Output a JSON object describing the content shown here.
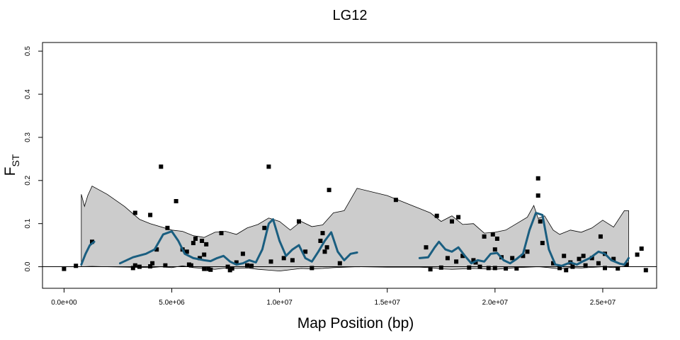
{
  "chart_data": {
    "type": "scatter",
    "title": "LG12",
    "xlabel": "Map Position (bp)",
    "ylabel_main": "F",
    "ylabel_sub": "ST",
    "xlim": [
      -1000000,
      27500000
    ],
    "ylim": [
      -0.05,
      0.52
    ],
    "x_ticks": [
      {
        "value": 0,
        "label": "0.0e+00"
      },
      {
        "value": 5000000,
        "label": "5.0e+06"
      },
      {
        "value": 10000000,
        "label": "1.0e+07"
      },
      {
        "value": 15000000,
        "label": "1.5e+07"
      },
      {
        "value": 20000000,
        "label": "2.0e+07"
      },
      {
        "value": 25000000,
        "label": "2.5e+07"
      }
    ],
    "y_ticks": [
      {
        "value": 0.0,
        "label": "0.0"
      },
      {
        "value": 0.1,
        "label": "0.1"
      },
      {
        "value": 0.2,
        "label": "0.2"
      },
      {
        "value": 0.3,
        "label": "0.3"
      },
      {
        "value": 0.4,
        "label": "0.4"
      },
      {
        "value": 0.5,
        "label": "0.5"
      }
    ],
    "reference_line_y": 0,
    "colors": {
      "points": "#000000",
      "smooth": "#1a5e80",
      "band_fill": "#cccccc",
      "band_edge": "#000000"
    },
    "envelope_upper": [
      [
        800000,
        0.168
      ],
      [
        950000,
        0.14
      ],
      [
        1100000,
        0.165
      ],
      [
        1300000,
        0.187
      ],
      [
        2000000,
        0.168
      ],
      [
        2800000,
        0.14
      ],
      [
        3500000,
        0.11
      ],
      [
        4000000,
        0.1
      ],
      [
        5000000,
        0.085
      ],
      [
        5500000,
        0.082
      ],
      [
        6000000,
        0.072
      ],
      [
        6500000,
        0.068
      ],
      [
        7000000,
        0.08
      ],
      [
        7500000,
        0.082
      ],
      [
        8000000,
        0.075
      ],
      [
        8500000,
        0.09
      ],
      [
        9000000,
        0.098
      ],
      [
        9500000,
        0.113
      ],
      [
        10000000,
        0.105
      ],
      [
        10500000,
        0.085
      ],
      [
        11000000,
        0.105
      ],
      [
        11500000,
        0.093
      ],
      [
        12000000,
        0.097
      ],
      [
        12500000,
        0.125
      ],
      [
        13000000,
        0.13
      ],
      [
        13600000,
        0.182
      ],
      [
        15000000,
        0.165
      ],
      [
        17000000,
        0.125
      ],
      [
        17500000,
        0.105
      ],
      [
        18000000,
        0.118
      ],
      [
        18500000,
        0.098
      ],
      [
        19000000,
        0.1
      ],
      [
        19500000,
        0.078
      ],
      [
        20000000,
        0.08
      ],
      [
        20500000,
        0.085
      ],
      [
        21000000,
        0.1
      ],
      [
        21500000,
        0.115
      ],
      [
        21800000,
        0.142
      ],
      [
        22000000,
        0.112
      ],
      [
        22300000,
        0.118
      ],
      [
        22700000,
        0.085
      ],
      [
        23000000,
        0.075
      ],
      [
        23500000,
        0.085
      ],
      [
        24000000,
        0.08
      ],
      [
        24500000,
        0.09
      ],
      [
        25000000,
        0.108
      ],
      [
        25500000,
        0.092
      ],
      [
        26000000,
        0.13
      ],
      [
        26200000,
        0.13
      ]
    ],
    "envelope_lower": [
      [
        26200000,
        0.002
      ],
      [
        25500000,
        -0.002
      ],
      [
        25000000,
        0.0
      ],
      [
        24000000,
        -0.003
      ],
      [
        23500000,
        -0.002
      ],
      [
        23000000,
        -0.005
      ],
      [
        22500000,
        -0.002
      ],
      [
        22000000,
        0.0
      ],
      [
        21000000,
        -0.002
      ],
      [
        20000000,
        -0.006
      ],
      [
        19500000,
        -0.005
      ],
      [
        19000000,
        -0.004
      ],
      [
        18000000,
        -0.006
      ],
      [
        17500000,
        -0.005
      ],
      [
        17000000,
        -0.002
      ],
      [
        16500000,
        -0.001
      ],
      [
        15000000,
        -0.001
      ],
      [
        13600000,
        0.0
      ],
      [
        12500000,
        -0.002
      ],
      [
        12000000,
        -0.004
      ],
      [
        11500000,
        -0.005
      ],
      [
        11000000,
        -0.004
      ],
      [
        10000000,
        -0.01
      ],
      [
        9500000,
        -0.008
      ],
      [
        9000000,
        -0.006
      ],
      [
        8500000,
        -0.003
      ],
      [
        8000000,
        -0.004
      ],
      [
        7500000,
        -0.003
      ],
      [
        7000000,
        -0.006
      ],
      [
        6500000,
        -0.004
      ],
      [
        6000000,
        -0.002
      ],
      [
        5500000,
        0.002
      ],
      [
        5000000,
        -0.002
      ],
      [
        4500000,
        0.0
      ],
      [
        4000000,
        -0.002
      ],
      [
        3000000,
        -0.001
      ],
      [
        2000000,
        0.0
      ],
      [
        1300000,
        0.001
      ],
      [
        800000,
        0.0
      ]
    ],
    "smooth_segments": [
      [
        [
          800000,
          0.005
        ],
        [
          1000000,
          0.03
        ],
        [
          1200000,
          0.05
        ],
        [
          1400000,
          0.058
        ]
      ],
      [
        [
          2600000,
          0.008
        ],
        [
          3200000,
          0.022
        ],
        [
          3800000,
          0.03
        ],
        [
          4200000,
          0.04
        ],
        [
          4600000,
          0.075
        ],
        [
          5000000,
          0.082
        ],
        [
          5300000,
          0.06
        ],
        [
          5600000,
          0.03
        ],
        [
          6000000,
          0.02
        ],
        [
          6500000,
          0.015
        ],
        [
          6800000,
          0.013
        ],
        [
          7100000,
          0.02
        ],
        [
          7400000,
          0.025
        ],
        [
          7700000,
          0.012
        ],
        [
          8000000,
          0.005
        ],
        [
          8300000,
          0.008
        ],
        [
          8600000,
          0.015
        ],
        [
          8900000,
          0.01
        ],
        [
          9200000,
          0.04
        ],
        [
          9500000,
          0.1
        ],
        [
          9700000,
          0.11
        ],
        [
          10000000,
          0.06
        ],
        [
          10300000,
          0.025
        ],
        [
          10600000,
          0.04
        ],
        [
          10900000,
          0.05
        ],
        [
          11200000,
          0.02
        ],
        [
          11500000,
          0.012
        ],
        [
          11800000,
          0.035
        ],
        [
          12100000,
          0.06
        ],
        [
          12400000,
          0.08
        ],
        [
          12700000,
          0.035
        ],
        [
          13000000,
          0.015
        ],
        [
          13300000,
          0.03
        ],
        [
          13600000,
          0.033
        ]
      ],
      [
        [
          16500000,
          0.02
        ],
        [
          16900000,
          0.022
        ],
        [
          17200000,
          0.045
        ],
        [
          17400000,
          0.058
        ],
        [
          17700000,
          0.04
        ],
        [
          18000000,
          0.035
        ],
        [
          18300000,
          0.045
        ],
        [
          18600000,
          0.025
        ],
        [
          18900000,
          0.008
        ],
        [
          19200000,
          0.015
        ],
        [
          19500000,
          0.012
        ],
        [
          19800000,
          0.03
        ],
        [
          20100000,
          0.032
        ],
        [
          20400000,
          0.015
        ],
        [
          20700000,
          0.008
        ],
        [
          21000000,
          0.018
        ],
        [
          21300000,
          0.03
        ],
        [
          21600000,
          0.085
        ],
        [
          21900000,
          0.125
        ],
        [
          22200000,
          0.12
        ],
        [
          22500000,
          0.04
        ],
        [
          22800000,
          0.005
        ],
        [
          23100000,
          0.002
        ],
        [
          23500000,
          0.01
        ],
        [
          23800000,
          0.005
        ],
        [
          24100000,
          0.013
        ],
        [
          24400000,
          0.02
        ],
        [
          24800000,
          0.035
        ],
        [
          25100000,
          0.03
        ],
        [
          25400000,
          0.015
        ],
        [
          25800000,
          0.007
        ],
        [
          26000000,
          0.005
        ],
        [
          26200000,
          0.02
        ]
      ]
    ],
    "points": [
      [
        0,
        -0.005
      ],
      [
        550000,
        0.002
      ],
      [
        1300000,
        0.058
      ],
      [
        3300000,
        0.125
      ],
      [
        3300000,
        0.003
      ],
      [
        3200000,
        -0.003
      ],
      [
        3500000,
        0.0
      ],
      [
        4000000,
        0.12
      ],
      [
        4000000,
        0.001
      ],
      [
        4100000,
        0.008
      ],
      [
        4300000,
        0.04
      ],
      [
        4500000,
        0.232
      ],
      [
        4700000,
        0.003
      ],
      [
        4800000,
        0.09
      ],
      [
        5200000,
        0.152
      ],
      [
        5500000,
        0.04
      ],
      [
        5700000,
        0.035
      ],
      [
        5800000,
        0.005
      ],
      [
        5900000,
        0.003
      ],
      [
        6000000,
        0.055
      ],
      [
        6100000,
        0.065
      ],
      [
        6300000,
        0.02
      ],
      [
        6400000,
        0.06
      ],
      [
        6500000,
        0.028
      ],
      [
        6600000,
        0.052
      ],
      [
        6500000,
        -0.005
      ],
      [
        6700000,
        -0.005
      ],
      [
        6800000,
        -0.007
      ],
      [
        7300000,
        0.078
      ],
      [
        7600000,
        0.0
      ],
      [
        7700000,
        -0.008
      ],
      [
        7800000,
        -0.004
      ],
      [
        8000000,
        0.01
      ],
      [
        8300000,
        0.03
      ],
      [
        8500000,
        0.003
      ],
      [
        8700000,
        0.002
      ],
      [
        9300000,
        0.09
      ],
      [
        9500000,
        0.232
      ],
      [
        9600000,
        0.012
      ],
      [
        10200000,
        0.02
      ],
      [
        10600000,
        0.015
      ],
      [
        10900000,
        0.105
      ],
      [
        11200000,
        0.035
      ],
      [
        11500000,
        -0.003
      ],
      [
        11900000,
        0.06
      ],
      [
        12000000,
        0.078
      ],
      [
        12100000,
        0.035
      ],
      [
        12200000,
        0.045
      ],
      [
        12300000,
        0.178
      ],
      [
        12800000,
        0.008
      ],
      [
        15400000,
        0.155
      ],
      [
        16800000,
        0.045
      ],
      [
        17000000,
        -0.006
      ],
      [
        17300000,
        0.118
      ],
      [
        17500000,
        -0.002
      ],
      [
        17800000,
        0.02
      ],
      [
        18000000,
        0.105
      ],
      [
        18300000,
        0.115
      ],
      [
        18200000,
        0.012
      ],
      [
        18500000,
        0.025
      ],
      [
        18800000,
        -0.002
      ],
      [
        19000000,
        0.015
      ],
      [
        19100000,
        0.01
      ],
      [
        19300000,
        0.0
      ],
      [
        19500000,
        0.07
      ],
      [
        19700000,
        -0.003
      ],
      [
        19900000,
        0.075
      ],
      [
        20000000,
        0.04
      ],
      [
        20000000,
        -0.003
      ],
      [
        20100000,
        0.065
      ],
      [
        20300000,
        0.022
      ],
      [
        20500000,
        -0.004
      ],
      [
        20800000,
        0.02
      ],
      [
        21000000,
        -0.004
      ],
      [
        21300000,
        0.025
      ],
      [
        21500000,
        0.035
      ],
      [
        22000000,
        0.205
      ],
      [
        22000000,
        0.165
      ],
      [
        22100000,
        0.105
      ],
      [
        22200000,
        0.055
      ],
      [
        22700000,
        0.008
      ],
      [
        23000000,
        -0.003
      ],
      [
        23200000,
        0.025
      ],
      [
        23300000,
        -0.008
      ],
      [
        23500000,
        0.01
      ],
      [
        23600000,
        0.0
      ],
      [
        23900000,
        0.018
      ],
      [
        24100000,
        0.025
      ],
      [
        24200000,
        0.003
      ],
      [
        24500000,
        0.02
      ],
      [
        24800000,
        0.008
      ],
      [
        24900000,
        0.07
      ],
      [
        25100000,
        -0.003
      ],
      [
        25100000,
        0.03
      ],
      [
        25500000,
        0.018
      ],
      [
        25700000,
        -0.004
      ],
      [
        26100000,
        0.005
      ],
      [
        26600000,
        0.028
      ],
      [
        26800000,
        0.042
      ],
      [
        27000000,
        -0.008
      ]
    ]
  }
}
